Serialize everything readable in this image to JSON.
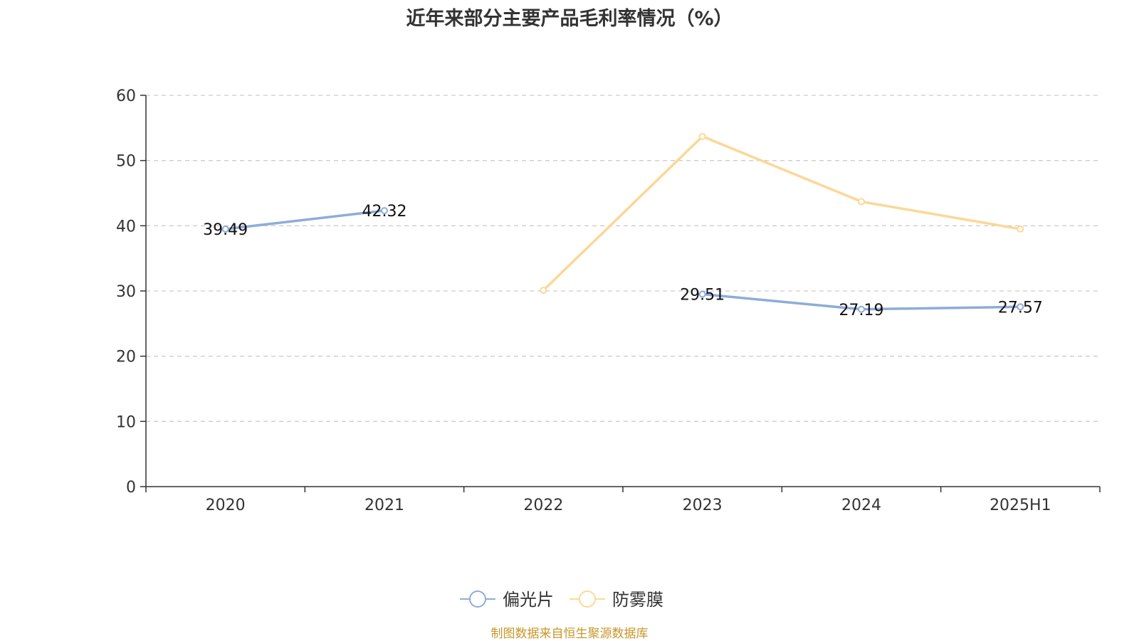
{
  "chart_data": {
    "type": "line",
    "title": "近年来部分主要产品毛利率情况（%）",
    "categories": [
      "2020",
      "2021",
      "2022",
      "2023",
      "2024",
      "2025H1"
    ],
    "ylim": [
      0,
      60
    ],
    "yticks": [
      0,
      10,
      20,
      30,
      40,
      50,
      60
    ],
    "grid": true,
    "legend_position": "bottom-center",
    "series": [
      {
        "name": "偏光片",
        "color": "#8eacd8",
        "values": [
          39.49,
          42.32,
          null,
          29.51,
          27.19,
          27.57
        ],
        "labels": [
          "39.49",
          "42.32",
          "",
          "29.51",
          "27.19",
          "27.57"
        ]
      },
      {
        "name": "防雾膜",
        "color": "#fbd896",
        "values": [
          null,
          null,
          30.1,
          53.7,
          43.7,
          39.5
        ],
        "labels": [
          "",
          "",
          "",
          "",
          "",
          ""
        ]
      }
    ]
  },
  "source_note": "制图数据来自恒生聚源数据库"
}
